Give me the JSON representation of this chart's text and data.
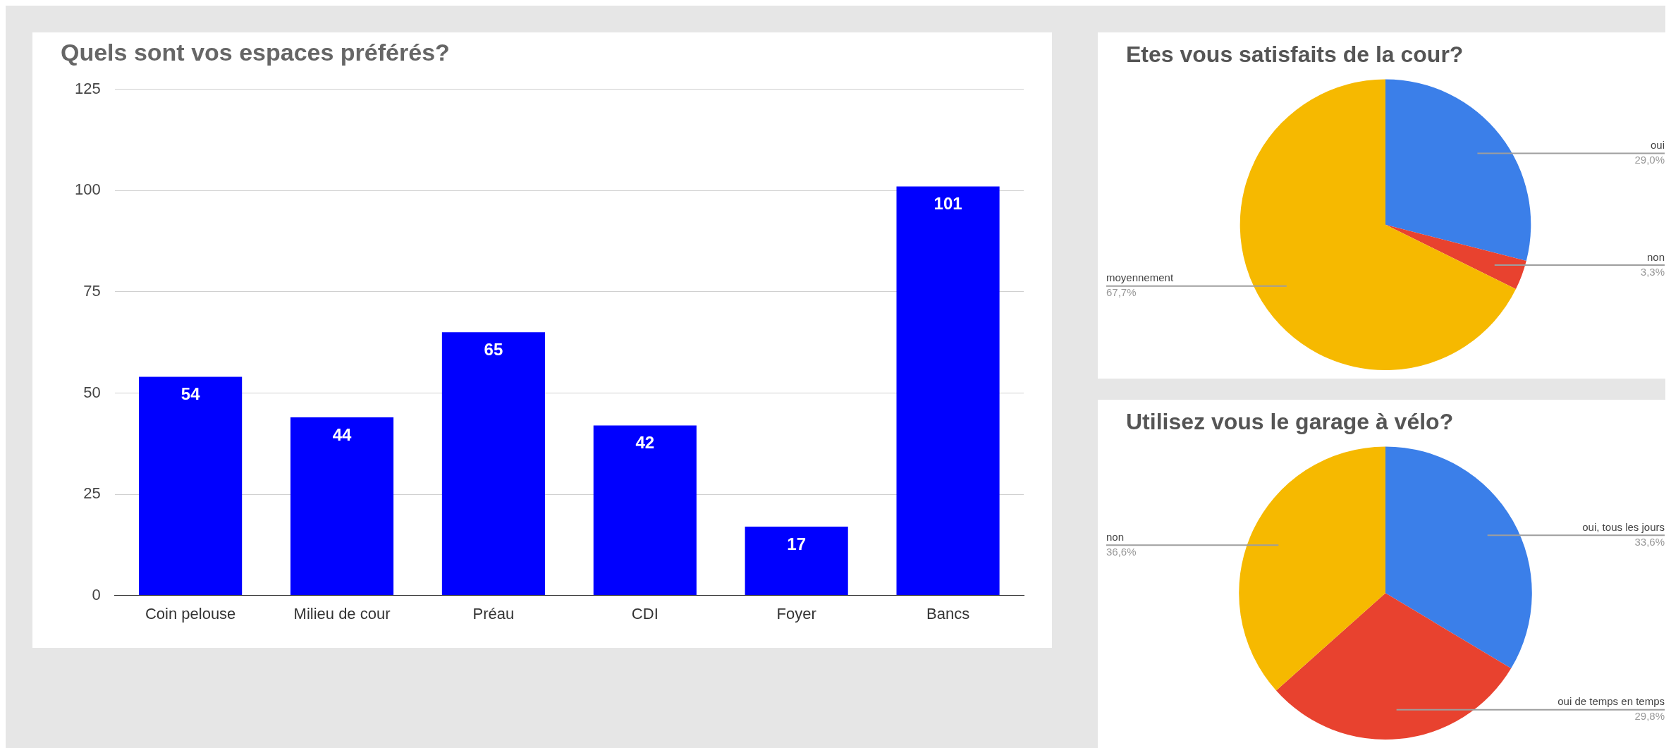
{
  "chart_data": [
    {
      "type": "bar",
      "title": "Quels sont vos espaces préférés?",
      "categories": [
        "Coin pelouse",
        "Milieu de cour",
        "Préau",
        "CDI",
        "Foyer",
        "Bancs"
      ],
      "values": [
        54,
        44,
        65,
        42,
        17,
        101
      ],
      "color": "#0000ff",
      "ylim": [
        0,
        125
      ],
      "yticks": [
        0,
        25,
        50,
        75,
        100,
        125
      ],
      "grid": "y",
      "data_labels": true,
      "legend": false
    },
    {
      "type": "pie",
      "title": "Etes vous satisfaits de la cour?",
      "categories": [
        "oui",
        "non",
        "moyennement"
      ],
      "values": [
        29.0,
        3.3,
        67.7
      ],
      "colors": [
        "#3b7fe9",
        "#e8422f",
        "#f6b900"
      ],
      "value_labels": [
        "29,0%",
        "3,3%",
        "67,7%"
      ],
      "legend": false
    },
    {
      "type": "pie",
      "title": "Utilisez vous le garage à vélo?",
      "categories": [
        "oui, tous les jours",
        "oui de temps en temps",
        "non"
      ],
      "values": [
        33.6,
        29.8,
        36.6
      ],
      "colors": [
        "#3b7fe9",
        "#e8422f",
        "#f6b900"
      ],
      "value_labels": [
        "33,6%",
        "29,8%",
        "36,6%"
      ],
      "legend": false
    }
  ]
}
